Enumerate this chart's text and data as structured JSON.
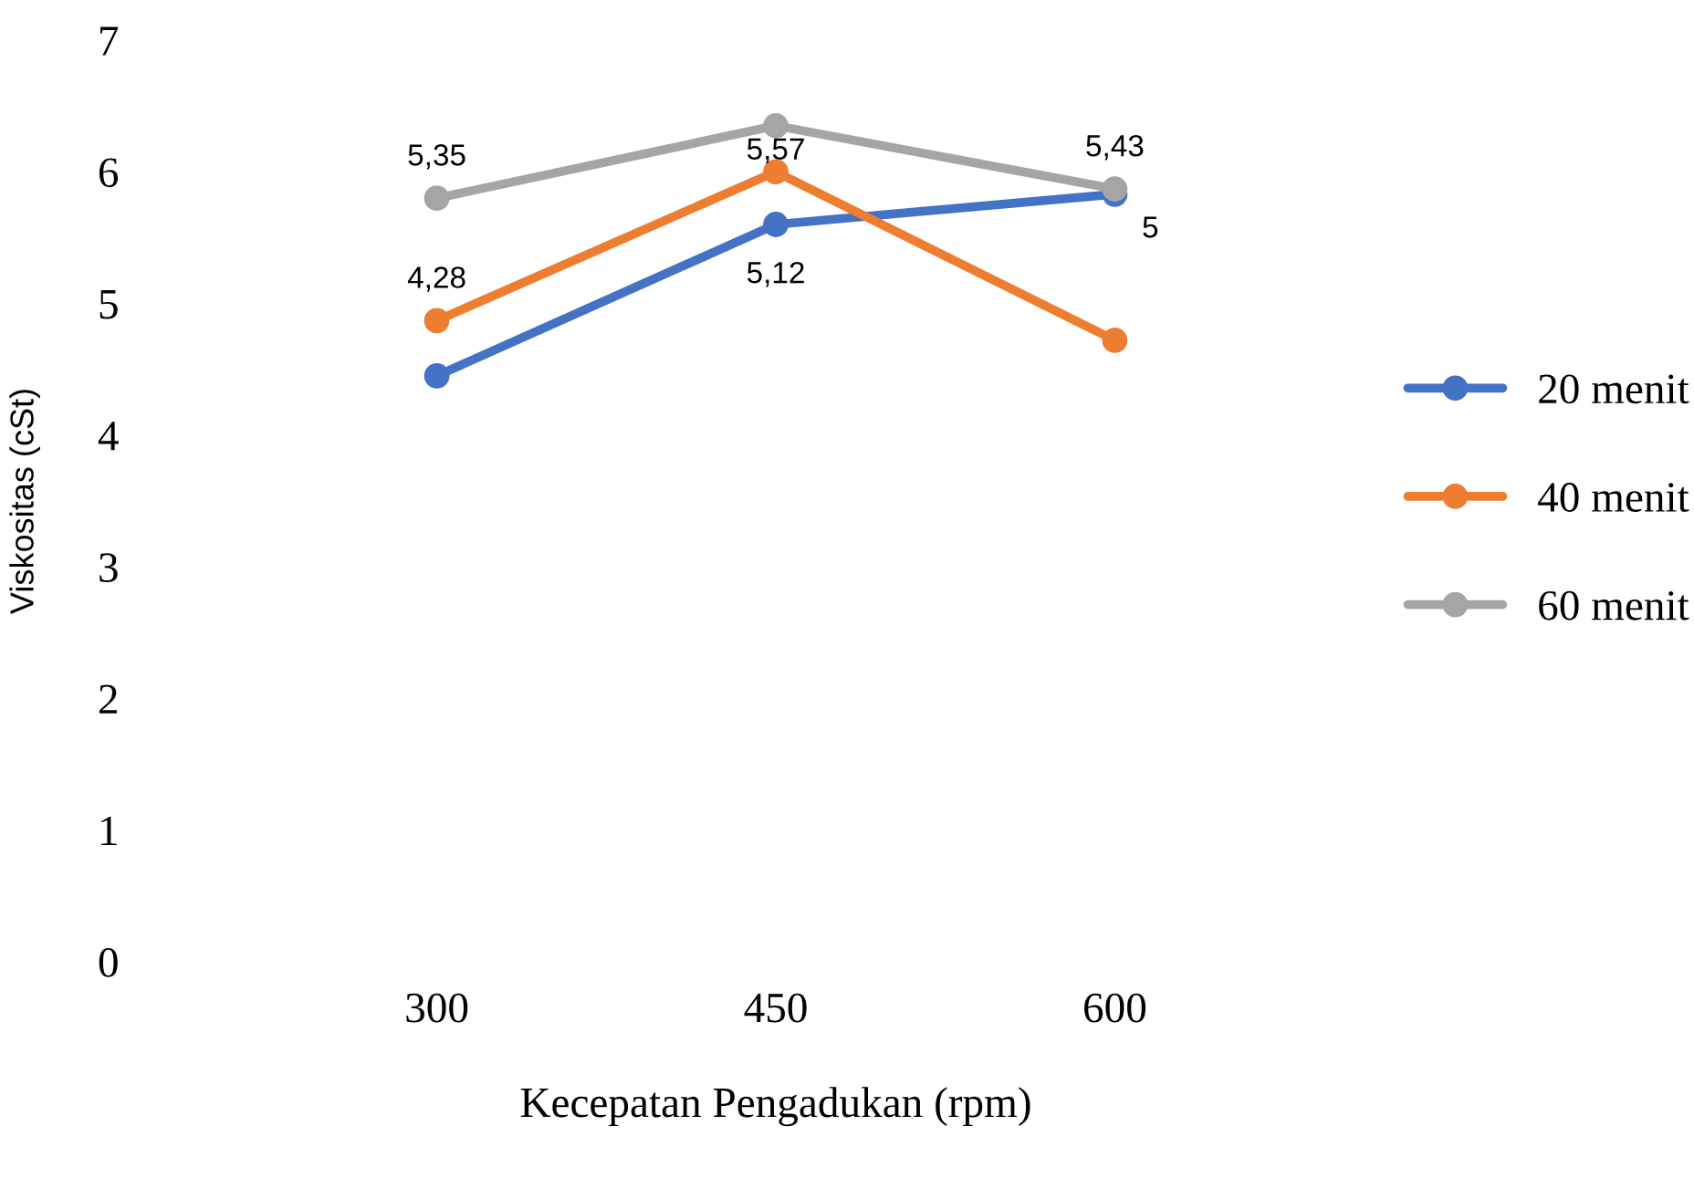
{
  "chart_data": {
    "type": "line",
    "xlabel": "Kecepatan Pengadukan (rpm)",
    "ylabel": "Viskositas (cSt)",
    "categories": [
      "300",
      "450",
      "600"
    ],
    "series": [
      {
        "name": "20 menit",
        "color": "#4472c4",
        "values": [
          4.45,
          5.6,
          5.83
        ]
      },
      {
        "name": "40 menit",
        "color": "#ed7d31",
        "values": [
          4.87,
          6.0,
          4.72
        ]
      },
      {
        "name": "60 menit",
        "color": "#a5a5a5",
        "values": [
          5.8,
          6.35,
          5.87
        ]
      }
    ],
    "ylim": [
      0,
      7
    ],
    "yticks": [
      0,
      1,
      2,
      3,
      4,
      5,
      6,
      7
    ],
    "grid": false,
    "legend": "right",
    "marker": "circle",
    "line_style": "solid",
    "annotations": [
      {
        "text": "5,35",
        "x": "300",
        "y": 5.8
      },
      {
        "text": "4,28",
        "x": "300",
        "y": 4.87
      },
      {
        "text": "5,57",
        "x": "450",
        "y": 6.0
      },
      {
        "text": "5,12",
        "x": "450",
        "y": 5.6
      },
      {
        "text": "5,43",
        "x": "600",
        "y": 5.87
      },
      {
        "text": "5",
        "x": "600",
        "y": 5.83
      }
    ]
  }
}
